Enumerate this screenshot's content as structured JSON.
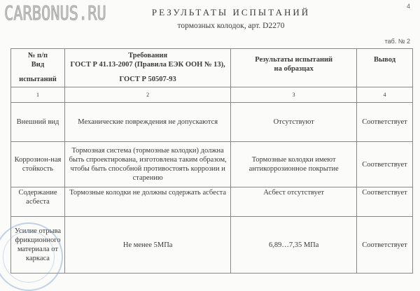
{
  "watermark": "CARBONUS.RU",
  "page_number": "4",
  "title": "РЕЗУЛЬТАТЫ ИСПЫТАНИЙ",
  "subtitle": "тормозных колодок, арт. D2270",
  "table_no": "таб. № 2",
  "header": {
    "col1": [
      "№ п/п",
      "Вид",
      "испытаний"
    ],
    "col2": [
      "Требования",
      "ГОСТ Р 41.13-2007 (Правила ЕЭК ООН № 13),",
      "ГОСТ Р 50507-93"
    ],
    "col3": [
      "Результаты испытаний",
      "на образцах"
    ],
    "col4": "Вывод"
  },
  "column_numbers": [
    "1",
    "2",
    "3",
    "4"
  ],
  "rows": [
    {
      "test": "Внешний вид",
      "requirement": "Механические повреждения не допускаются",
      "result": "Отсутствуют",
      "conclusion": "Соответствует"
    },
    {
      "test": "Коррозион-ная стойкость",
      "requirement": "Тормозная система (тормозные колодки) должна быть спроектирована, изготовлена таким образом, чтобы быть способной противостоять коррозии и старению",
      "result": "Тормозные колодки имеют антикоррозионное покрытие",
      "conclusion": "Соответствует"
    },
    {
      "test": "Содержание асбеста",
      "requirement": "Тормозные колодки не должны содержать асбеста",
      "result": "Асбест отсутствует",
      "conclusion": "Соответствует"
    },
    {
      "test": "Усилие отрыва фрикционного материала от каркаса",
      "requirement": "Не менее 5МПа",
      "result": "6,89…7,35 МПа",
      "conclusion": "Соответствует"
    }
  ]
}
